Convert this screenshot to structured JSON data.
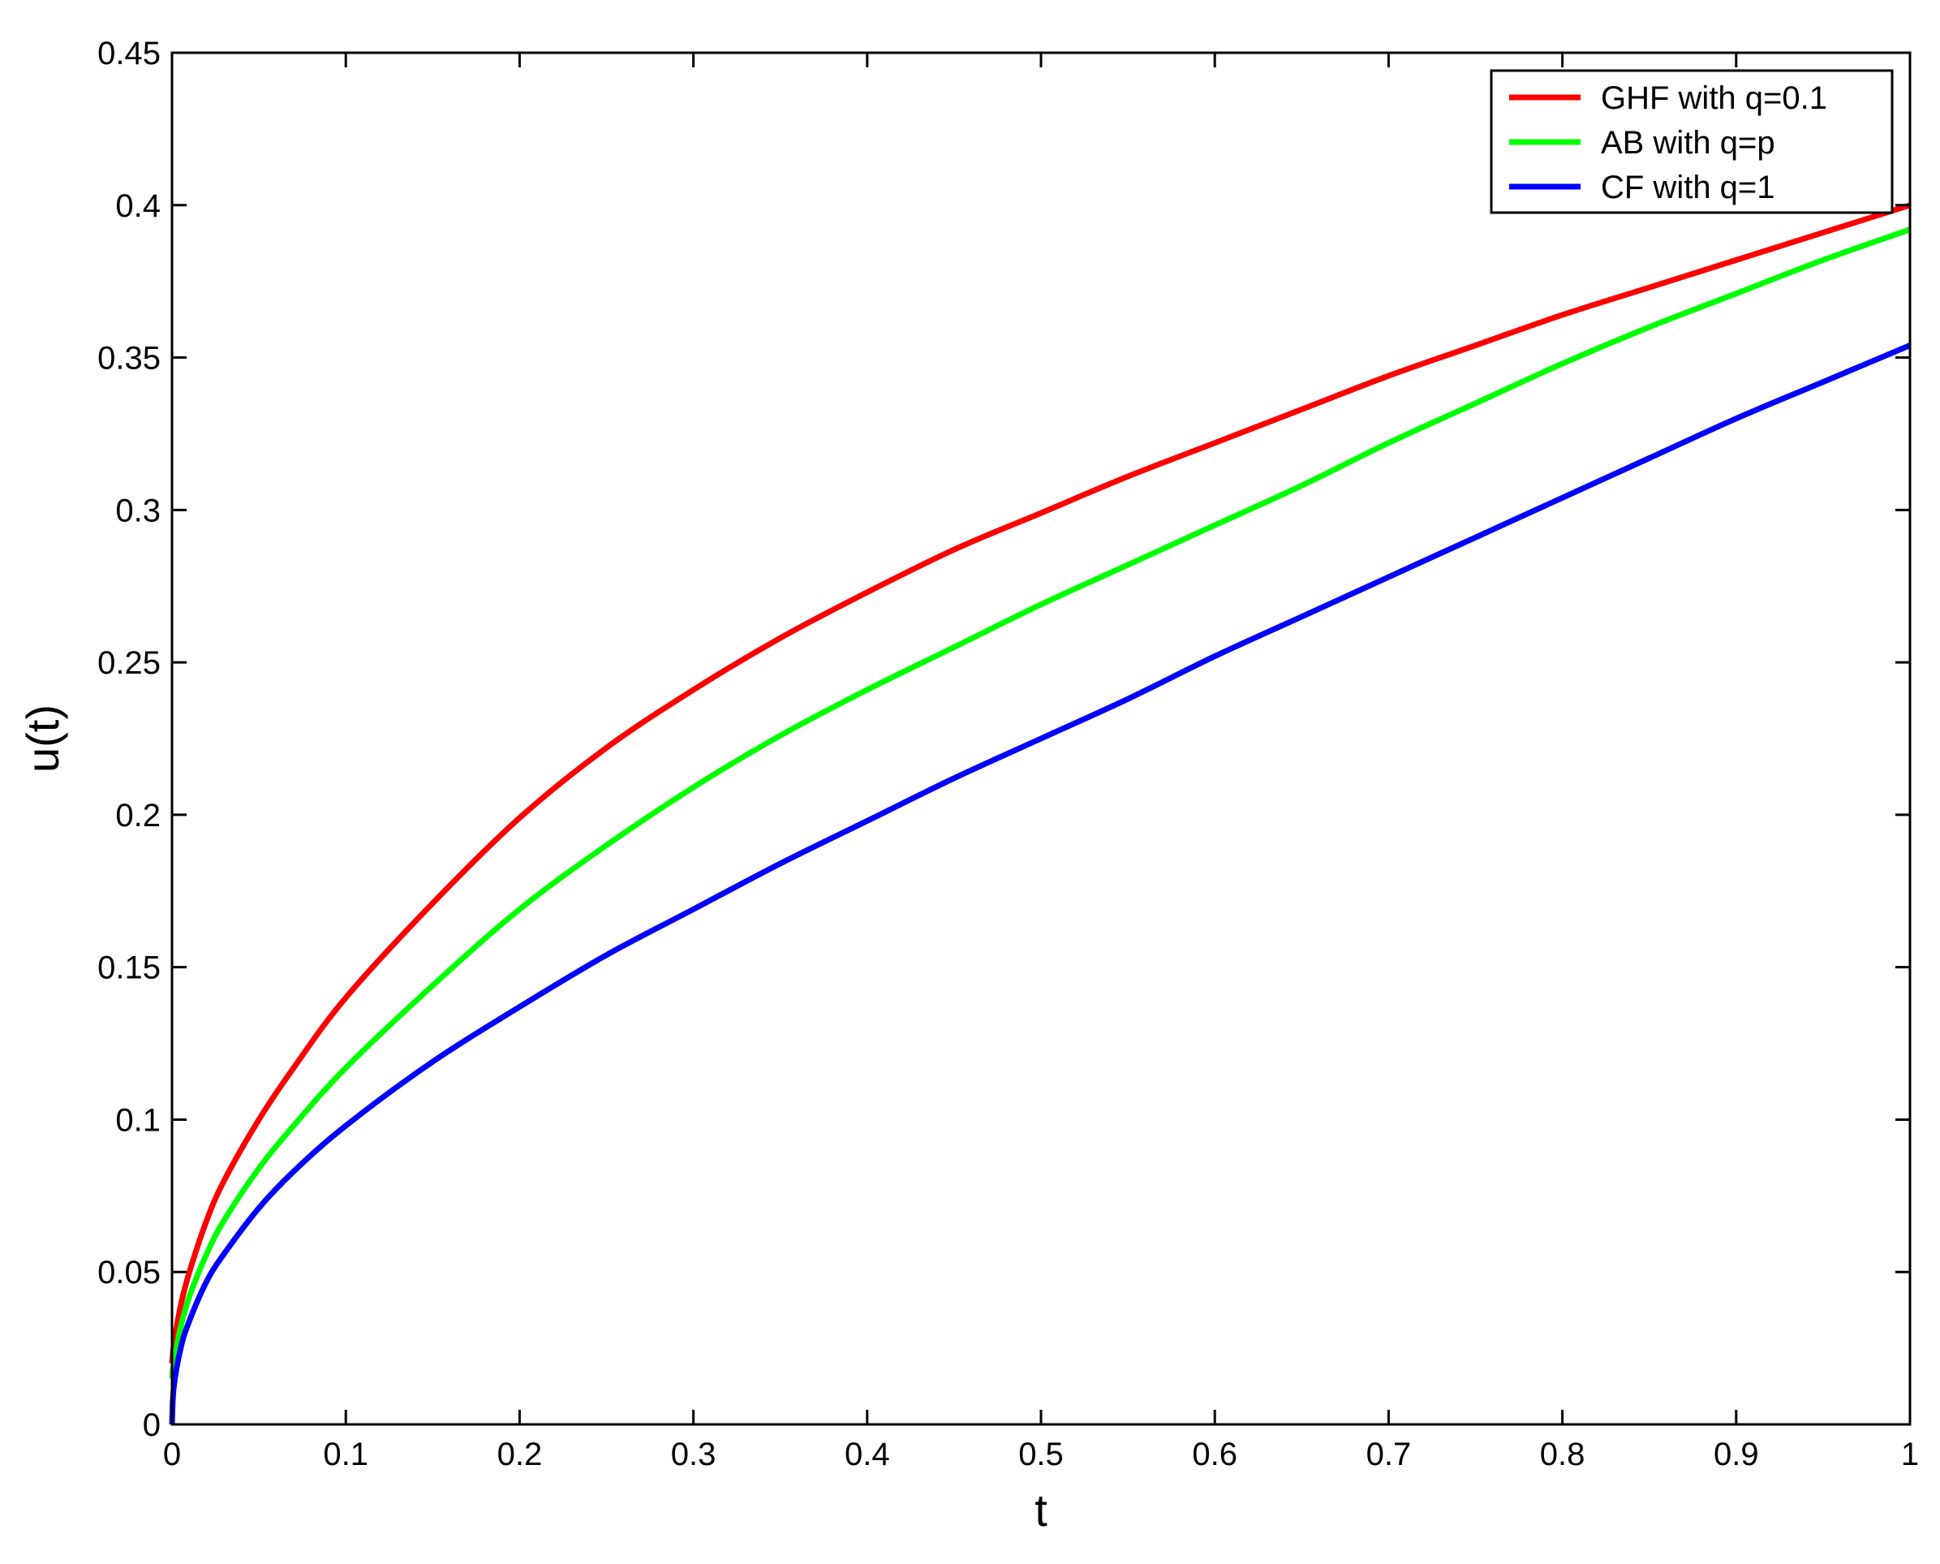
{
  "chart_data": {
    "type": "line",
    "xlabel": "t",
    "ylabel": "u(t)",
    "xlim": [
      0,
      1
    ],
    "ylim": [
      0,
      0.45
    ],
    "xticks": [
      0,
      0.1,
      0.2,
      0.3,
      0.4,
      0.5,
      0.6,
      0.7,
      0.8,
      0.9,
      1
    ],
    "xtick_labels": [
      "0",
      "0.1",
      "0.2",
      "0.3",
      "0.4",
      "0.5",
      "0.6",
      "0.7",
      "0.8",
      "0.9",
      "1"
    ],
    "yticks": [
      0,
      0.05,
      0.1,
      0.15,
      0.2,
      0.25,
      0.3,
      0.35,
      0.4,
      0.45
    ],
    "ytick_labels": [
      "0",
      "0.05",
      "0.1",
      "0.15",
      "0.2",
      "0.25",
      "0.3",
      "0.35",
      "0.4",
      "0.45"
    ],
    "grid": false,
    "legend_position": "top-right",
    "x": [
      0,
      0.001,
      0.005,
      0.01,
      0.02,
      0.03,
      0.05,
      0.07,
      0.1,
      0.15,
      0.2,
      0.25,
      0.3,
      0.35,
      0.4,
      0.45,
      0.5,
      0.55,
      0.6,
      0.65,
      0.7,
      0.75,
      0.8,
      0.85,
      0.9,
      0.95,
      1
    ],
    "series": [
      {
        "name": "GHF with q=0.1",
        "color": "#ff0000",
        "values": [
          0.02,
          0.026,
          0.039,
          0.05,
          0.067,
          0.08,
          0.1,
          0.117,
          0.14,
          0.171,
          0.199,
          0.222,
          0.241,
          0.258,
          0.273,
          0.287,
          0.299,
          0.311,
          0.322,
          0.333,
          0.344,
          0.354,
          0.364,
          0.373,
          0.382,
          0.391,
          0.4
        ]
      },
      {
        "name": "AB with q=p",
        "color": "#00ff00",
        "values": [
          0.015,
          0.02,
          0.032,
          0.042,
          0.056,
          0.067,
          0.084,
          0.098,
          0.117,
          0.144,
          0.169,
          0.19,
          0.209,
          0.226,
          0.241,
          0.255,
          0.269,
          0.282,
          0.295,
          0.308,
          0.322,
          0.335,
          0.348,
          0.36,
          0.371,
          0.382,
          0.392
        ]
      },
      {
        "name": "CF with q=1",
        "color": "#0000ff",
        "values": [
          0.0,
          0.012,
          0.025,
          0.034,
          0.047,
          0.056,
          0.071,
          0.083,
          0.098,
          0.119,
          0.137,
          0.154,
          0.169,
          0.184,
          0.198,
          0.212,
          0.225,
          0.238,
          0.252,
          0.265,
          0.278,
          0.291,
          0.304,
          0.317,
          0.33,
          0.342,
          0.354
        ]
      }
    ]
  }
}
